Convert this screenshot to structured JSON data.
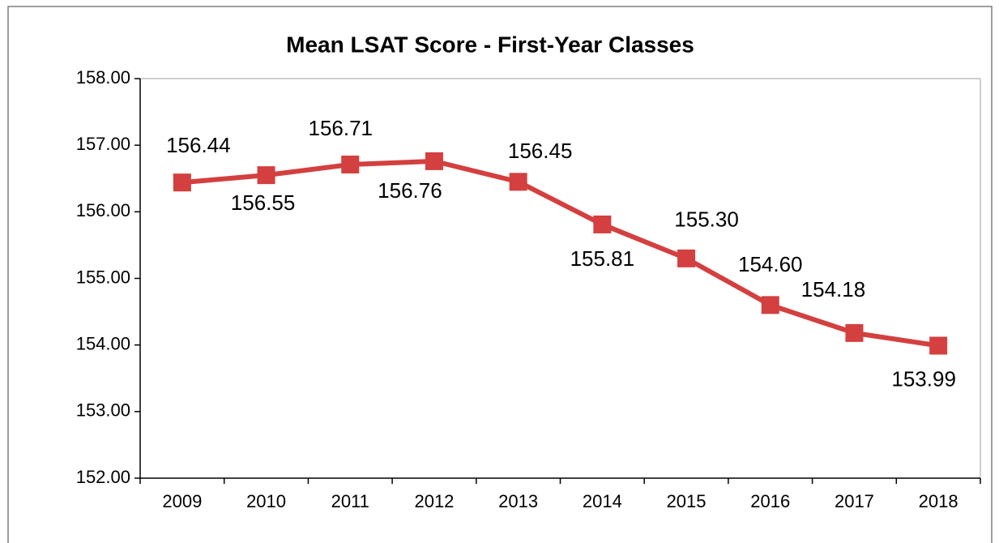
{
  "chart_data": {
    "type": "line",
    "title": "Mean LSAT Score - First-Year Classes",
    "categories": [
      "2009",
      "2010",
      "2011",
      "2012",
      "2013",
      "2014",
      "2015",
      "2016",
      "2017",
      "2018"
    ],
    "values": [
      156.44,
      156.55,
      156.71,
      156.76,
      156.45,
      155.81,
      155.3,
      154.6,
      154.18,
      153.99
    ],
    "value_labels": [
      "156.44",
      "156.55",
      "156.71",
      "156.76",
      "156.45",
      "155.81",
      "155.30",
      "154.60",
      "154.18",
      "153.99"
    ],
    "color": "#d43f3f",
    "ylim": [
      152,
      158
    ],
    "yticks": [
      {
        "value": 152,
        "label": "152.00"
      },
      {
        "value": 153,
        "label": "153.00"
      },
      {
        "value": 154,
        "label": "154.00"
      },
      {
        "value": 155,
        "label": "155.00"
      },
      {
        "value": 156,
        "label": "156.00"
      },
      {
        "value": 157,
        "label": "157.00"
      },
      {
        "value": 158,
        "label": "158.00"
      }
    ],
    "grid": false
  }
}
